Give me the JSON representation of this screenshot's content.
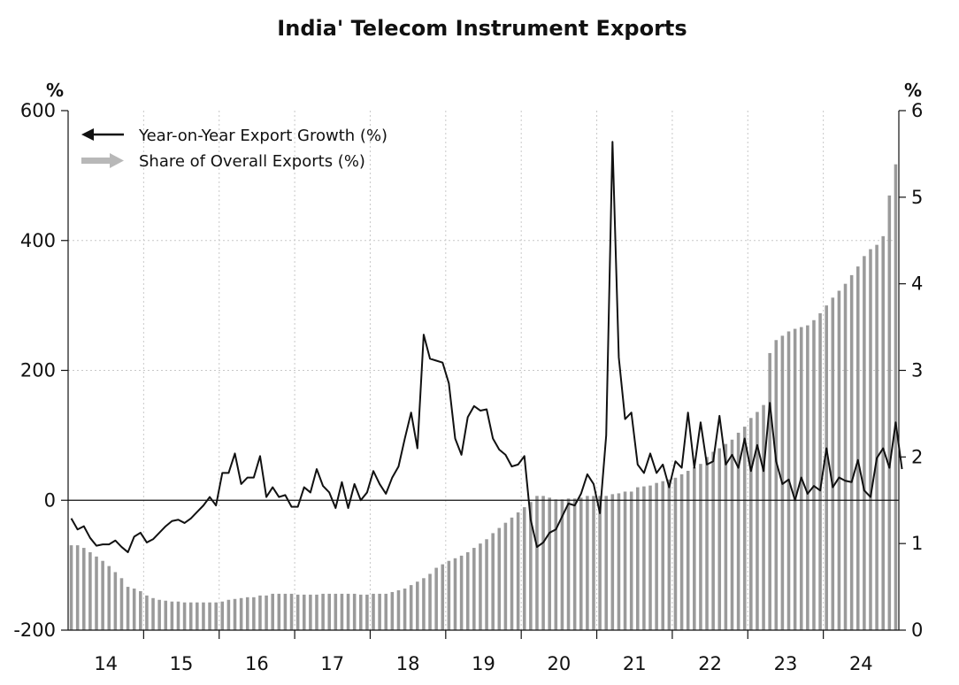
{
  "chart_data": {
    "type": "bar+line",
    "title": "India' Telecom Instrument Exports",
    "left_axis": {
      "unit": "%",
      "min": -200,
      "max": 600,
      "ticks": [
        "600",
        "400",
        "200",
        "0",
        "-200"
      ]
    },
    "right_axis": {
      "unit": "%",
      "min": 0,
      "max": 6,
      "ticks": [
        "6",
        "5",
        "4",
        "3",
        "2",
        "1",
        "0"
      ]
    },
    "x_axis": {
      "labels": [
        "14",
        "15",
        "16",
        "17",
        "18",
        "19",
        "20",
        "21",
        "22",
        "23",
        "24"
      ],
      "start_year": 2014,
      "months": 132
    },
    "grid": "vertical dotted at year boundaries, horizontal dotted at 400 and 200, solid line at 0",
    "legend": {
      "position": "top-left",
      "entries": [
        "Year-on-Year Export Growth (%)",
        "Share of Overall Exports (%)"
      ]
    },
    "series": [
      {
        "name": "Year-on-Year Export Growth (%)",
        "axis": "left",
        "style": "line",
        "color": "#111111",
        "values": [
          -28,
          -45,
          -40,
          -58,
          -70,
          -68,
          -68,
          -62,
          -72,
          -80,
          -56,
          -50,
          -65,
          -60,
          -50,
          -40,
          -32,
          -30,
          -35,
          -28,
          -18,
          -8,
          5,
          -8,
          42,
          42,
          72,
          25,
          35,
          35,
          68,
          5,
          20,
          5,
          8,
          -10,
          -10,
          20,
          12,
          48,
          22,
          12,
          -12,
          28,
          -12,
          25,
          0,
          12,
          45,
          25,
          10,
          35,
          52,
          95,
          135,
          80,
          255,
          218,
          215,
          212,
          180,
          95,
          70,
          128,
          145,
          138,
          140,
          95,
          78,
          70,
          52,
          55,
          68,
          -30,
          -72,
          -65,
          -50,
          -45,
          -25,
          -5,
          -8,
          10,
          40,
          25,
          -20,
          100,
          552,
          220,
          125,
          135,
          55,
          42,
          72,
          42,
          55,
          20,
          60,
          50,
          135,
          50,
          120,
          55,
          60,
          130,
          55,
          70,
          50,
          95,
          45,
          85,
          45,
          150,
          60,
          25,
          32,
          0,
          35,
          10,
          22,
          15,
          80,
          20,
          35,
          30,
          28,
          62,
          15,
          5,
          65,
          80,
          50,
          120,
          48
        ]
      },
      {
        "name": "Share of Overall Exports (%)",
        "axis": "right",
        "style": "bar",
        "color": "#9a9a9a",
        "values": [
          0.98,
          0.98,
          0.95,
          0.9,
          0.85,
          0.8,
          0.74,
          0.67,
          0.6,
          0.5,
          0.48,
          0.45,
          0.4,
          0.37,
          0.35,
          0.34,
          0.33,
          0.33,
          0.32,
          0.32,
          0.32,
          0.32,
          0.32,
          0.32,
          0.33,
          0.35,
          0.36,
          0.37,
          0.38,
          0.38,
          0.4,
          0.4,
          0.42,
          0.42,
          0.42,
          0.42,
          0.41,
          0.41,
          0.41,
          0.41,
          0.42,
          0.42,
          0.42,
          0.42,
          0.42,
          0.42,
          0.41,
          0.41,
          0.42,
          0.42,
          0.42,
          0.44,
          0.46,
          0.48,
          0.52,
          0.56,
          0.6,
          0.65,
          0.72,
          0.76,
          0.8,
          0.83,
          0.86,
          0.9,
          0.95,
          1.0,
          1.05,
          1.12,
          1.18,
          1.24,
          1.3,
          1.36,
          1.42,
          1.48,
          1.55,
          1.55,
          1.53,
          1.51,
          1.51,
          1.52,
          1.52,
          1.53,
          1.55,
          1.55,
          1.55,
          1.55,
          1.57,
          1.58,
          1.6,
          1.6,
          1.65,
          1.66,
          1.67,
          1.7,
          1.72,
          1.74,
          1.76,
          1.8,
          1.84,
          1.88,
          1.92,
          2.0,
          2.06,
          2.1,
          2.15,
          2.2,
          2.28,
          2.35,
          2.45,
          2.52,
          2.6,
          3.2,
          3.35,
          3.4,
          3.45,
          3.48,
          3.5,
          3.52,
          3.58,
          3.66,
          3.75,
          3.84,
          3.92,
          4.0,
          4.1,
          4.2,
          4.32,
          4.4,
          4.45,
          4.55,
          5.02,
          5.38
        ]
      }
    ]
  }
}
